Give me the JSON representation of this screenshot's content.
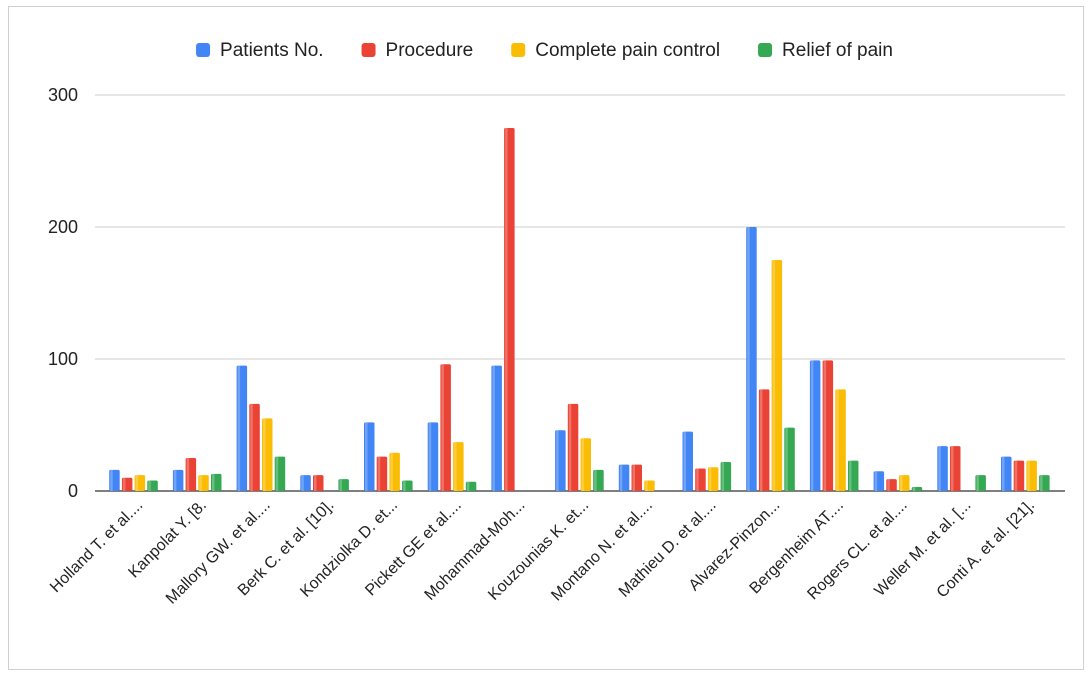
{
  "chart_data": {
    "type": "bar",
    "title": "",
    "xlabel": "",
    "ylabel": "",
    "ylim": [
      0,
      300
    ],
    "yticks": [
      "0",
      "100",
      "200",
      "300"
    ],
    "grid": true,
    "legend_position": "top",
    "categories": [
      "Holland  T. et al....",
      "Kanpolat Y. [8.",
      "Mallory GW. et al....",
      "Berk C. et al. [10].",
      "Kondziolka D. et...",
      "Pickett GE et al....",
      "Mohammad-Moh...",
      "Kouzounias K. et...",
      "Montano N. et al....",
      "Mathieu D. et al....",
      "Alvarez-Pinzon...",
      "Bergenheim AT....",
      "Rogers CL. et al....",
      "Weller M. et al. [...",
      "Conti A. et al. [21]."
    ],
    "series": [
      {
        "name": "Patients No.",
        "color": "#4285f4",
        "values": [
          16,
          16,
          95,
          12,
          52,
          52,
          95,
          46,
          20,
          45,
          200,
          99,
          15,
          34,
          26
        ]
      },
      {
        "name": "Procedure",
        "color": "#ea4335",
        "values": [
          10,
          25,
          66,
          12,
          26,
          96,
          275,
          66,
          20,
          17,
          77,
          99,
          9,
          34,
          23
        ]
      },
      {
        "name": "Complete pain control",
        "color": "#fbbc04",
        "values": [
          12,
          12,
          55,
          0,
          29,
          37,
          0,
          40,
          8,
          18,
          175,
          77,
          12,
          0,
          23
        ]
      },
      {
        "name": "Relief of pain",
        "color": "#34a853",
        "values": [
          8,
          13,
          26,
          9,
          8,
          7,
          0,
          16,
          0,
          22,
          48,
          23,
          3,
          12,
          12
        ]
      }
    ]
  }
}
